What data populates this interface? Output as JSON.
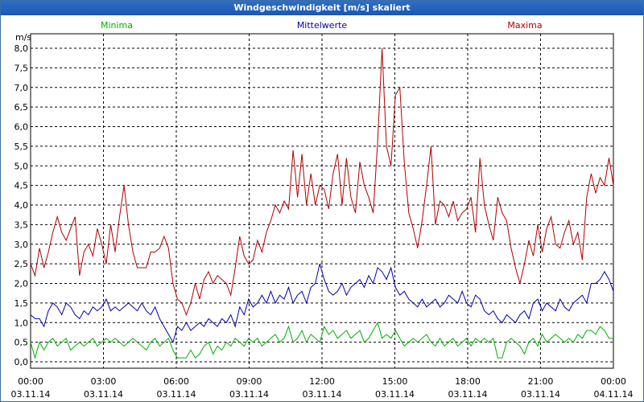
{
  "window": {
    "title": "Windgeschwindigkeit [m/s] skaliert"
  },
  "chart_data": {
    "type": "line",
    "title": "Windgeschwindigkeit [m/s] skaliert",
    "ylabel": "m/s",
    "ylim": [
      0,
      8.3
    ],
    "xlim": [
      0,
      24
    ],
    "grid": true,
    "legend_position": "top",
    "y_ticks": [
      "0,0",
      "0,5",
      "1,0",
      "1,5",
      "2,0",
      "2,5",
      "3,0",
      "3,5",
      "4,0",
      "4,5",
      "5,0",
      "5,5",
      "6,0",
      "6,5",
      "7,0",
      "7,5",
      "8,0"
    ],
    "x_ticks": [
      {
        "time": "00:00",
        "date": "03.11.14"
      },
      {
        "time": "03:00",
        "date": "03.11.14"
      },
      {
        "time": "06:00",
        "date": "03.11.14"
      },
      {
        "time": "09:00",
        "date": "03.11.14"
      },
      {
        "time": "12:00",
        "date": "03.11.14"
      },
      {
        "time": "15:00",
        "date": "03.11.14"
      },
      {
        "time": "18:00",
        "date": "03.11.14"
      },
      {
        "time": "21:00",
        "date": "03.11.14"
      },
      {
        "time": "00:00",
        "date": "04.11.14"
      }
    ],
    "series": [
      {
        "name": "Minima",
        "color": "#00b000",
        "values": [
          0.5,
          0.1,
          0.5,
          0.3,
          0.5,
          0.6,
          0.4,
          0.5,
          0.6,
          0.3,
          0.4,
          0.5,
          0.4,
          0.5,
          0.6,
          0.4,
          0.5,
          0.6,
          0.5,
          0.6,
          0.5,
          0.4,
          0.5,
          0.6,
          0.5,
          0.4,
          0.3,
          0.5,
          0.6,
          0.4,
          0.5,
          0.6,
          0.3,
          0.1,
          0.1,
          0.1,
          0.3,
          0.1,
          0.2,
          0.4,
          0.5,
          0.2,
          0.4,
          0.3,
          0.5,
          0.4,
          0.6,
          0.5,
          0.4,
          0.6,
          0.5,
          0.6,
          0.4,
          0.5,
          0.6,
          0.7,
          0.5,
          0.6,
          0.9,
          0.5,
          0.6,
          0.8,
          0.5,
          0.7,
          0.6,
          0.5,
          0.9,
          0.7,
          0.8,
          0.6,
          0.7,
          0.8,
          0.6,
          0.7,
          0.8,
          0.5,
          0.6,
          0.8,
          1.0,
          0.6,
          0.7,
          0.6,
          0.8,
          0.6,
          0.4,
          0.5,
          0.6,
          0.5,
          0.6,
          0.7,
          0.5,
          0.4,
          0.6,
          0.4,
          0.5,
          0.6,
          0.4,
          0.5,
          0.6,
          0.4,
          0.6,
          0.5,
          0.6,
          0.5,
          0.6,
          0.1,
          0.1,
          0.5,
          0.6,
          0.5,
          0.4,
          0.2,
          0.5,
          0.6,
          0.4,
          0.7,
          0.5,
          0.6,
          0.7,
          0.6,
          0.5,
          0.6,
          0.5,
          0.7,
          0.6,
          0.8,
          0.8,
          0.7,
          0.9,
          0.8,
          0.6,
          0.6
        ]
      },
      {
        "name": "Mittelwerte",
        "color": "#0000b0",
        "values": [
          1.2,
          1.1,
          1.1,
          0.9,
          1.3,
          1.5,
          1.4,
          1.2,
          1.5,
          1.4,
          1.2,
          1.1,
          1.3,
          1.2,
          1.4,
          1.3,
          1.4,
          1.6,
          1.3,
          1.4,
          1.3,
          1.4,
          1.5,
          1.4,
          1.3,
          1.5,
          1.3,
          1.2,
          1.4,
          1.1,
          0.9,
          0.7,
          0.5,
          0.9,
          0.8,
          1.0,
          0.8,
          0.9,
          1.0,
          0.9,
          1.1,
          1.0,
          0.9,
          1.1,
          1.0,
          1.2,
          0.9,
          1.4,
          1.2,
          1.6,
          1.4,
          1.5,
          1.7,
          1.5,
          1.8,
          1.5,
          1.7,
          1.6,
          1.9,
          1.5,
          1.7,
          1.8,
          1.5,
          1.9,
          2.0,
          2.5,
          2.1,
          1.8,
          1.7,
          1.8,
          2.0,
          1.7,
          1.9,
          2.0,
          2.1,
          1.9,
          2.2,
          2.0,
          2.4,
          2.3,
          2.1,
          2.4,
          1.9,
          1.7,
          1.8,
          1.6,
          1.5,
          1.4,
          1.6,
          1.4,
          1.5,
          1.6,
          1.4,
          1.5,
          1.7,
          1.6,
          1.5,
          1.8,
          1.5,
          1.4,
          1.7,
          1.6,
          1.3,
          1.2,
          1.3,
          1.1,
          1.0,
          1.2,
          1.1,
          1.0,
          1.2,
          1.3,
          1.1,
          1.5,
          1.6,
          1.3,
          1.5,
          1.4,
          1.3,
          1.6,
          1.4,
          1.3,
          1.5,
          1.6,
          1.7,
          1.5,
          2.0,
          2.0,
          2.1,
          2.3,
          2.1,
          1.8
        ]
      },
      {
        "name": "Maxima",
        "color": "#b00000",
        "values": [
          2.5,
          2.2,
          2.9,
          2.4,
          2.8,
          3.3,
          3.7,
          3.3,
          3.1,
          3.4,
          3.7,
          2.2,
          2.8,
          3.0,
          2.7,
          3.4,
          3.0,
          2.5,
          3.5,
          2.8,
          3.7,
          4.5,
          3.5,
          2.8,
          2.4,
          2.4,
          2.4,
          2.8,
          2.8,
          2.9,
          3.2,
          2.9,
          2.0,
          1.6,
          1.5,
          1.2,
          1.5,
          2.0,
          1.6,
          2.1,
          2.3,
          2.0,
          2.2,
          2.1,
          2.0,
          1.7,
          2.4,
          3.2,
          2.7,
          2.5,
          2.6,
          3.1,
          2.8,
          3.3,
          3.6,
          4.0,
          3.8,
          4.1,
          3.9,
          5.4,
          4.2,
          5.3,
          4.0,
          4.8,
          4.0,
          4.5,
          4.4,
          3.9,
          4.8,
          5.3,
          4.0,
          5.2,
          4.2,
          3.8,
          5.1,
          4.5,
          4.2,
          3.8,
          5.6,
          8.0,
          5.5,
          5.0,
          6.8,
          7.0,
          5.1,
          3.8,
          3.4,
          2.9,
          3.6,
          4.5,
          5.5,
          3.5,
          4.1,
          4.0,
          3.7,
          4.1,
          3.6,
          3.8,
          3.9,
          4.2,
          3.3,
          5.2,
          4.0,
          3.5,
          3.1,
          4.2,
          3.8,
          3.6,
          2.9,
          2.4,
          2.0,
          2.5,
          3.1,
          2.7,
          3.5,
          2.8,
          3.4,
          3.7,
          3.0,
          2.9,
          3.3,
          3.6,
          3.0,
          3.3,
          2.6,
          4.2,
          4.8,
          4.3,
          4.7,
          4.5,
          5.2,
          4.5
        ]
      }
    ]
  }
}
